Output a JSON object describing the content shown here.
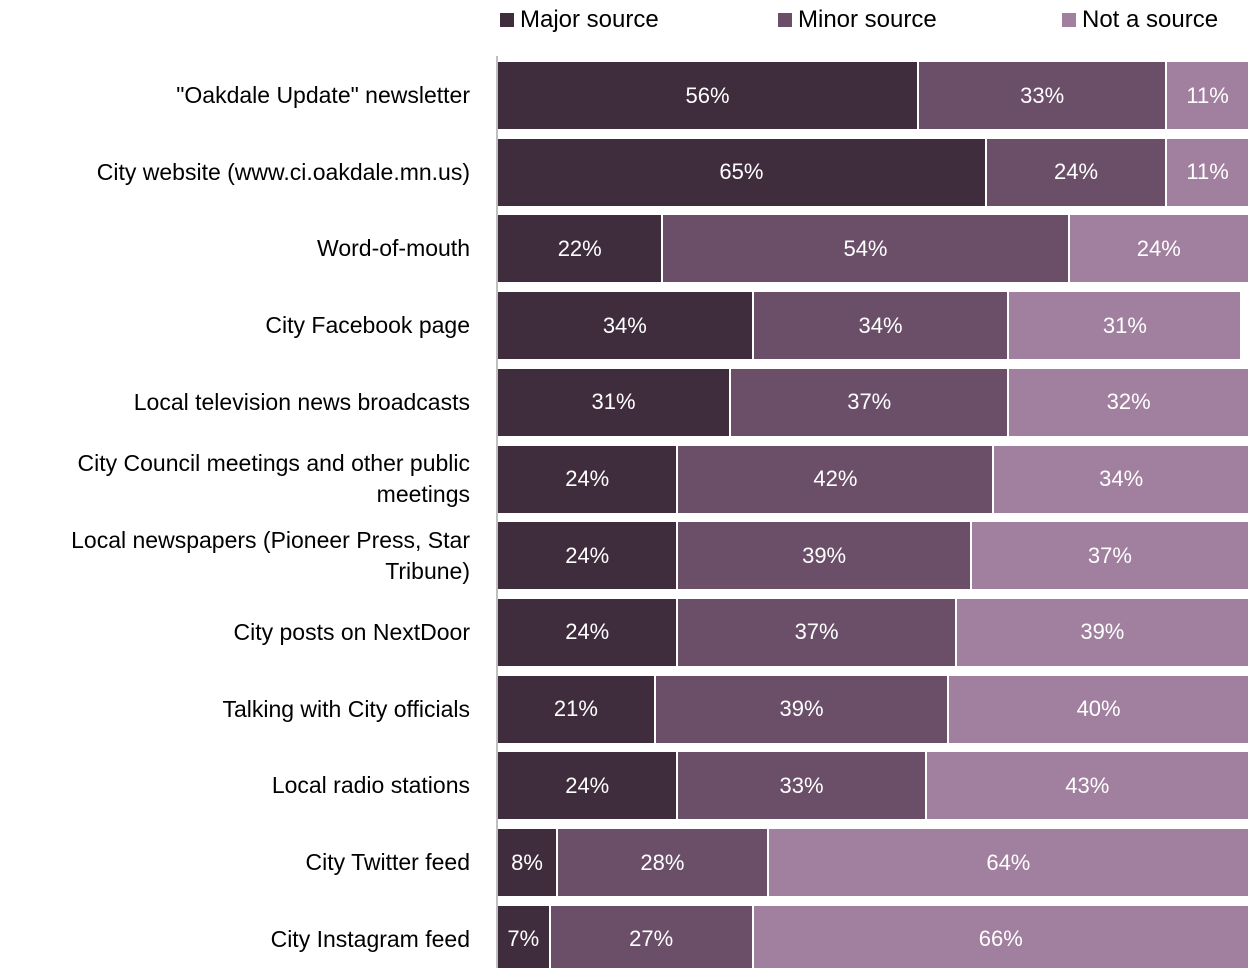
{
  "chart_data": {
    "type": "stacked-bar-horizontal",
    "categories": [
      "\"Oakdale Update\" newsletter",
      "City website (www.ci.oakdale.mn.us)",
      "Word-of-mouth",
      "City Facebook page",
      "Local television news broadcasts",
      "City Council meetings and other public meetings",
      "Local newspapers (Pioneer Press, Star Tribune)",
      "City posts on NextDoor",
      "Talking with City officials",
      "Local radio stations",
      "City Twitter feed",
      "City Instagram feed"
    ],
    "series": [
      {
        "name": "Major source",
        "color": "#3f2d3e",
        "values": [
          56,
          65,
          22,
          34,
          31,
          24,
          24,
          24,
          21,
          24,
          8,
          7
        ],
        "value_labels": [
          "56%",
          "65%",
          "22%",
          "34%",
          "31%",
          "24%",
          "24%",
          "24%",
          "21%",
          "24%",
          "8%",
          "7%"
        ]
      },
      {
        "name": "Minor source",
        "color": "#6b4f69",
        "values": [
          33,
          24,
          54,
          34,
          37,
          42,
          39,
          37,
          39,
          33,
          28,
          27
        ],
        "value_labels": [
          "33%",
          "24%",
          "54%",
          "34%",
          "37%",
          "42%",
          "39%",
          "37%",
          "39%",
          "33%",
          "28%",
          "27%"
        ]
      },
      {
        "name": "Not a source",
        "color": "#a17f9f",
        "values": [
          11,
          11,
          24,
          31,
          32,
          34,
          37,
          39,
          40,
          43,
          64,
          66
        ],
        "value_labels": [
          "11%",
          "11%",
          "24%",
          "31%",
          "32%",
          "34%",
          "37%",
          "39%",
          "40%",
          "43%",
          "64%",
          "66%"
        ]
      }
    ],
    "xlim": [
      0,
      100
    ],
    "legend": "top"
  }
}
